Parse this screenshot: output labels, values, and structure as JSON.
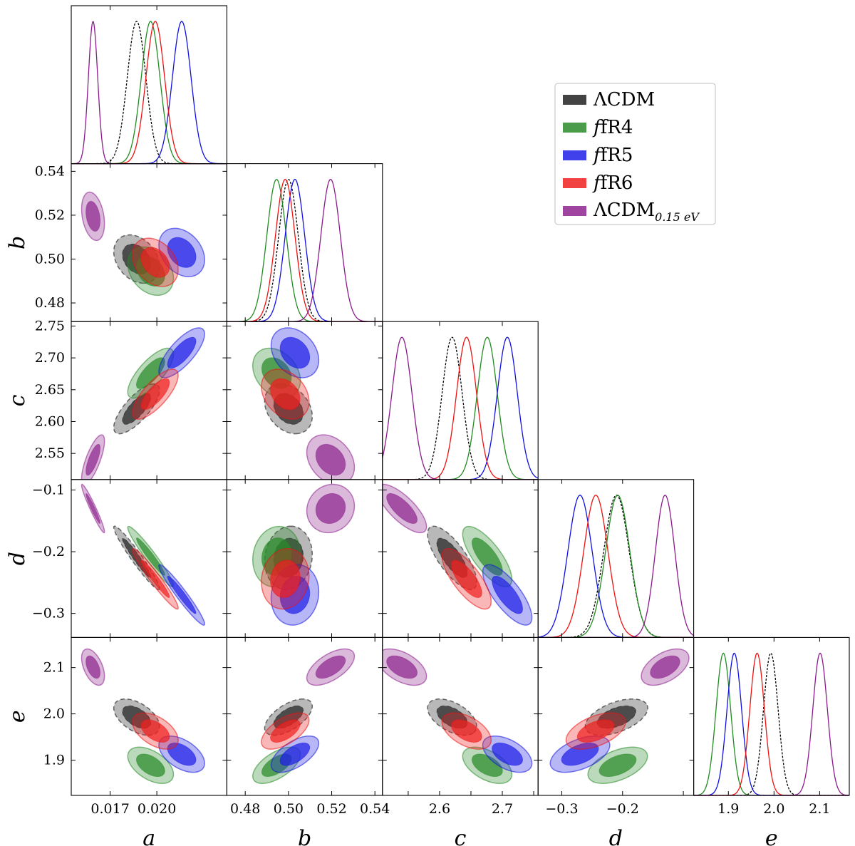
{
  "chart_data": {
    "type": "scatter",
    "title": "",
    "params": [
      {
        "name": "a",
        "label": "a",
        "range": [
          0.0145,
          0.0245
        ],
        "ticks": [
          0.017,
          0.02
        ],
        "tick_labels": [
          "0.017",
          "0.020"
        ]
      },
      {
        "name": "b",
        "label": "b",
        "range": [
          0.4715,
          0.5435
        ],
        "ticks": [
          0.48,
          0.5,
          0.52,
          0.54
        ],
        "tick_labels": [
          "0.48",
          "0.50",
          "0.52",
          "0.54"
        ]
      },
      {
        "name": "c",
        "label": "c",
        "range": [
          2.509,
          2.757
        ],
        "ticks": [
          2.55,
          2.6,
          2.65,
          2.7,
          2.75
        ],
        "tick_labels": [
          "2.55",
          "2.60",
          "2.65",
          "2.70",
          "2.75"
        ],
        "diag_ticks": [
          2.6,
          2.7
        ],
        "diag_tick_labels": [
          "2.6",
          "2.7"
        ]
      },
      {
        "name": "d",
        "label": "d",
        "range": [
          -0.339,
          -0.083
        ],
        "ticks": [
          -0.3,
          -0.2,
          -0.1
        ],
        "tick_labels": [
          "−0.3",
          "−0.2",
          "−0.1"
        ],
        "diag_ticks": [
          -0.3,
          -0.2
        ],
        "diag_tick_labels": [
          "−0.3",
          "−0.2"
        ]
      },
      {
        "name": "e",
        "label": "e",
        "range": [
          1.824,
          2.165
        ],
        "ticks": [
          1.9,
          2.0,
          2.1
        ],
        "tick_labels": [
          "1.9",
          "2.0",
          "2.1"
        ]
      }
    ],
    "series": [
      {
        "name": "ΛCDM",
        "legend_main": "ΛCDM",
        "legend_sub": "",
        "color": "#000000",
        "fill": "#222222",
        "dashed": true,
        "mean": [
          0.0187,
          0.5,
          2.62,
          -0.21,
          1.993
        ],
        "sigma": [
          0.0006,
          0.0045,
          0.016,
          0.021,
          0.016
        ],
        "corr": {
          "0-1": -0.3,
          "0-2": 0.75,
          "0-3": -0.96,
          "0-4": -0.5,
          "1-2": -0.3,
          "1-3": 0.1,
          "1-4": 0.6,
          "2-3": -0.75,
          "2-4": -0.5,
          "3-4": 0.5
        }
      },
      {
        "name": "fR4",
        "legend_main": "fR4",
        "legend_sub": "",
        "color": "#228b22",
        "fill": "#2a8a2a",
        "dashed": false,
        "mean": [
          0.0196,
          0.4945,
          2.676,
          -0.208,
          1.889
        ],
        "sigma": [
          0.0006,
          0.0045,
          0.016,
          0.02,
          0.016
        ],
        "corr": {
          "0-1": -0.3,
          "0-2": 0.75,
          "0-3": -0.96,
          "0-4": -0.5,
          "1-2": -0.3,
          "1-3": 0.1,
          "1-4": 0.6,
          "2-3": -0.75,
          "2-4": -0.5,
          "3-4": 0.5
        }
      },
      {
        "name": "fR5",
        "legend_main": "fR5",
        "legend_sub": "",
        "color": "#1010e0",
        "fill": "#2020e8",
        "dashed": false,
        "mean": [
          0.0216,
          0.503,
          2.708,
          -0.27,
          1.913
        ],
        "sigma": [
          0.0006,
          0.0045,
          0.016,
          0.02,
          0.016
        ],
        "corr": {
          "0-1": -0.3,
          "0-2": 0.75,
          "0-3": -0.96,
          "0-4": -0.5,
          "1-2": -0.3,
          "1-3": 0.1,
          "1-4": 0.6,
          "2-3": -0.75,
          "2-4": -0.5,
          "3-4": 0.5
        }
      },
      {
        "name": "fR6",
        "legend_main": "fR6",
        "legend_sub": "",
        "color": "#ee1111",
        "fill": "#f02020",
        "dashed": false,
        "mean": [
          0.0199,
          0.4985,
          2.643,
          -0.244,
          1.963
        ],
        "sigma": [
          0.0006,
          0.0045,
          0.016,
          0.02,
          0.016
        ],
        "corr": {
          "0-1": -0.3,
          "0-2": 0.75,
          "0-3": -0.96,
          "0-4": -0.5,
          "1-2": -0.3,
          "1-3": 0.1,
          "1-4": 0.6,
          "2-3": -0.75,
          "2-4": -0.5,
          "3-4": 0.5
        }
      },
      {
        "name": "ΛCDM 0.15eV",
        "legend_main": "ΛCDM",
        "legend_sub": "0.15 eV",
        "color": "#8b1a8b",
        "fill": "#8e258e",
        "dashed": false,
        "mean": [
          0.0159,
          0.5195,
          2.54,
          -0.13,
          2.101
        ],
        "sigma": [
          0.0003,
          0.0045,
          0.016,
          0.016,
          0.016
        ],
        "corr": {
          "0-1": -0.3,
          "0-2": 0.75,
          "0-3": -0.96,
          "0-4": -0.5,
          "1-2": -0.3,
          "1-3": 0.1,
          "1-4": 0.6,
          "2-3": -0.75,
          "2-4": -0.5,
          "3-4": 0.5
        }
      }
    ]
  }
}
